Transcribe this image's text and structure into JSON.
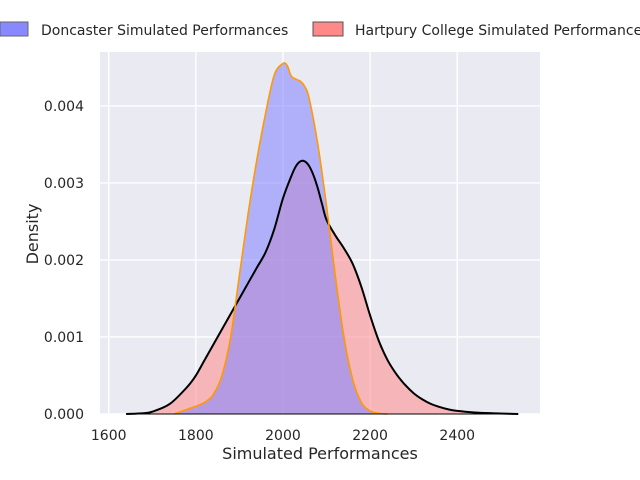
{
  "chart_data": {
    "type": "area",
    "title": "",
    "xlabel": "Simulated Performances",
    "ylabel": "Density",
    "xlim": [
      1580,
      2590
    ],
    "ylim": [
      0,
      0.0047
    ],
    "xticks": [
      1600,
      1800,
      2000,
      2200,
      2400
    ],
    "xtick_labels": [
      "1600",
      "1800",
      "2000",
      "2200",
      "2400"
    ],
    "yticks": [
      0.0,
      0.001,
      0.002,
      0.003,
      0.004
    ],
    "ytick_labels": [
      "0.000",
      "0.001",
      "0.002",
      "0.003",
      "0.004"
    ],
    "grid": true,
    "legend_position": "top",
    "background_color": "#eaeaf2",
    "series": [
      {
        "name": "Doncaster Simulated Performances",
        "fill_color": "#8888ff",
        "fill_opacity": 0.6,
        "line_color": "#ff9900",
        "x": [
          1750,
          1780,
          1800,
          1820,
          1840,
          1860,
          1880,
          1900,
          1920,
          1940,
          1960,
          1980,
          2000,
          2010,
          2020,
          2040,
          2050,
          2060,
          2080,
          2100,
          2120,
          2140,
          2160,
          2180,
          2200,
          2220,
          2240
        ],
        "y": [
          0.0,
          6e-05,
          0.0001,
          0.00015,
          0.00025,
          0.0005,
          0.001,
          0.0018,
          0.0026,
          0.0033,
          0.0039,
          0.0044,
          0.00455,
          0.00452,
          0.00438,
          0.00432,
          0.00425,
          0.0041,
          0.0035,
          0.0027,
          0.0018,
          0.001,
          0.00045,
          0.00015,
          4e-05,
          1e-05,
          0.0
        ]
      },
      {
        "name": "Hartpury College Simulated Performances",
        "fill_color": "#ff8888",
        "fill_opacity": 0.55,
        "line_color": "#000000",
        "x": [
          1640,
          1680,
          1700,
          1740,
          1780,
          1800,
          1820,
          1850,
          1880,
          1900,
          1920,
          1940,
          1960,
          1980,
          2000,
          2020,
          2030,
          2040,
          2050,
          2060,
          2070,
          2080,
          2090,
          2100,
          2120,
          2140,
          2160,
          2180,
          2200,
          2220,
          2240,
          2260,
          2280,
          2300,
          2320,
          2340,
          2360,
          2380,
          2400,
          2440,
          2480,
          2540
        ],
        "y": [
          0.0,
          1e-05,
          3e-05,
          0.00013,
          0.00035,
          0.0005,
          0.0007,
          0.001,
          0.0013,
          0.0015,
          0.0017,
          0.0019,
          0.0021,
          0.0024,
          0.0028,
          0.0031,
          0.00322,
          0.00328,
          0.00328,
          0.00322,
          0.0031,
          0.00293,
          0.00272,
          0.00252,
          0.00232,
          0.00215,
          0.00195,
          0.00165,
          0.00128,
          0.00095,
          0.0007,
          0.00052,
          0.00038,
          0.00027,
          0.00019,
          0.00013,
          9e-05,
          6e-05,
          4e-05,
          2e-05,
          1e-05,
          0.0
        ]
      }
    ]
  }
}
